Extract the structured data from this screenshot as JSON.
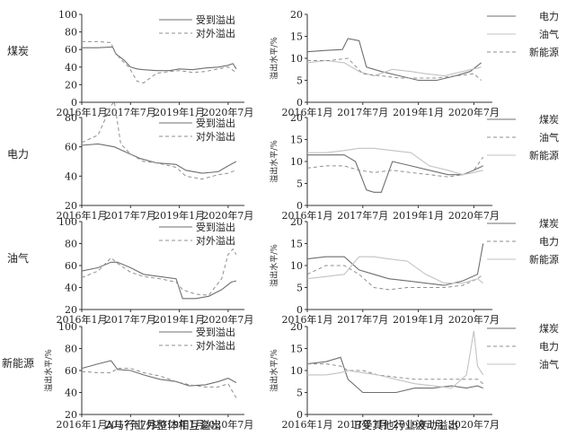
{
  "chart_data": {
    "type": "line",
    "x_ticks": [
      "2016年1月",
      "2017年7月",
      "2019年1月",
      "2020年7月"
    ],
    "x_range": [
      "2016-01",
      "2021-01"
    ],
    "colors": {
      "solid": "#6f6f6f",
      "dashed": "#8f8f8f",
      "light": "#c2c2c2",
      "axis": "#333333"
    },
    "captions": {
      "left": "A与行业外整体相互溢出",
      "right": "B受其他行业波动溢出"
    },
    "rows": [
      {
        "sector": "煤炭",
        "left": {
          "ylabel": "",
          "ylim": [
            0,
            100
          ],
          "yticks": [
            0,
            20,
            40,
            60,
            80,
            100
          ],
          "series": [
            {
              "name": "受到溢出",
              "style": "solid",
              "x": [
                2016.0,
                2016.5,
                2016.95,
                2017.05,
                2017.3,
                2017.5,
                2017.7,
                2017.9,
                2018.3,
                2018.7,
                2019.0,
                2019.4,
                2019.8,
                2020.2,
                2020.5,
                2020.65,
                2020.75
              ],
              "y": [
                62,
                62,
                63,
                55,
                48,
                40,
                38,
                37,
                36,
                36,
                38,
                37,
                39,
                40,
                42,
                44,
                38
              ]
            },
            {
              "name": "对外溢出",
              "style": "dashed",
              "x": [
                2016.0,
                2016.5,
                2016.9,
                2017.0,
                2017.2,
                2017.45,
                2017.7,
                2017.9,
                2018.3,
                2018.7,
                2019.0,
                2019.4,
                2019.8,
                2020.2,
                2020.5,
                2020.75
              ],
              "y": [
                69,
                69,
                68,
                58,
                49,
                40,
                24,
                22,
                33,
                35,
                36,
                34,
                35,
                38,
                40,
                34
              ]
            }
          ]
        },
        "right": {
          "ylabel": "溢出水平/%",
          "ylim": [
            0,
            20
          ],
          "yticks": [
            0,
            5,
            10,
            15,
            20
          ],
          "series": [
            {
              "name": "电力",
              "style": "solid",
              "x": [
                2016.0,
                2016.5,
                2016.95,
                2017.1,
                2017.4,
                2017.6,
                2018.0,
                2018.5,
                2019.0,
                2019.5,
                2020.0,
                2020.4,
                2020.7
              ],
              "y": [
                11.5,
                11.8,
                12,
                14.5,
                14,
                8,
                7,
                6,
                5,
                5,
                6,
                7,
                9
              ]
            },
            {
              "name": "油气",
              "style": "light",
              "x": [
                2016.0,
                2016.5,
                2017.0,
                2017.4,
                2017.8,
                2018.3,
                2018.8,
                2019.2,
                2019.7,
                2020.2,
                2020.7
              ],
              "y": [
                9,
                9.5,
                9,
                7,
                6,
                7.5,
                7,
                6.5,
                6,
                7,
                8
              ]
            },
            {
              "name": "新能源",
              "style": "dashed",
              "x": [
                2016.0,
                2016.6,
                2017.1,
                2017.5,
                2018.0,
                2018.5,
                2019.0,
                2019.5,
                2020.0,
                2020.5,
                2020.7
              ],
              "y": [
                9.5,
                9.5,
                10,
                6.5,
                6,
                5.5,
                5.5,
                5.5,
                6,
                6.5,
                5
              ]
            }
          ]
        }
      },
      {
        "sector": "电力",
        "left": {
          "ylabel": "",
          "ylim": [
            20,
            80
          ],
          "yticks": [
            20,
            40,
            60,
            80
          ],
          "series": [
            {
              "name": "受到溢出",
              "style": "solid",
              "x": [
                2016.0,
                2016.5,
                2017.0,
                2017.4,
                2017.8,
                2018.3,
                2018.9,
                2019.2,
                2019.7,
                2020.2,
                2020.5,
                2020.75
              ],
              "y": [
                61,
                62,
                60,
                56,
                52,
                49,
                48,
                44,
                42,
                43,
                47,
                50
              ]
            },
            {
              "name": "对外溢出",
              "style": "dashed",
              "x": [
                2016.0,
                2016.5,
                2016.9,
                2017.0,
                2017.2,
                2017.5,
                2017.9,
                2018.3,
                2018.9,
                2019.2,
                2019.7,
                2020.2,
                2020.5,
                2020.75
              ],
              "y": [
                63,
                68,
                88,
                91,
                62,
                55,
                50,
                49,
                46,
                40,
                38,
                41,
                42,
                44
              ]
            }
          ]
        },
        "right": {
          "ylabel": "溢出水平/%",
          "ylim": [
            0,
            20
          ],
          "yticks": [
            0,
            5,
            10,
            15,
            20
          ],
          "series": [
            {
              "name": "煤炭",
              "style": "solid",
              "x": [
                2016.0,
                2016.5,
                2017.0,
                2017.3,
                2017.6,
                2017.8,
                2018.0,
                2018.3,
                2018.8,
                2019.3,
                2019.8,
                2020.2,
                2020.5,
                2020.75
              ],
              "y": [
                11.5,
                11.5,
                11.5,
                10,
                3.5,
                3,
                3,
                10,
                9,
                8,
                7,
                7,
                8,
                9
              ]
            },
            {
              "name": "油气",
              "style": "dashed",
              "x": [
                2016.0,
                2016.5,
                2017.0,
                2017.4,
                2017.8,
                2018.3,
                2018.8,
                2019.3,
                2019.8,
                2020.2,
                2020.5,
                2020.75
              ],
              "y": [
                8.5,
                9,
                9,
                8,
                7.5,
                8,
                7.5,
                7,
                6.5,
                7,
                8,
                11
              ]
            },
            {
              "name": "新能源",
              "style": "light",
              "x": [
                2016.0,
                2016.5,
                2017.0,
                2017.4,
                2017.8,
                2018.3,
                2018.8,
                2019.3,
                2019.8,
                2020.2,
                2020.5,
                2020.75
              ],
              "y": [
                12,
                12,
                12.5,
                13,
                13,
                12.5,
                12,
                9,
                8,
                7,
                7.5,
                8
              ]
            }
          ]
        }
      },
      {
        "sector": "油气",
        "left": {
          "ylabel": "",
          "ylim": [
            20,
            100
          ],
          "yticks": [
            20,
            40,
            60,
            80,
            100
          ],
          "series": [
            {
              "name": "受到溢出",
              "style": "solid",
              "x": [
                2016.0,
                2016.5,
                2016.9,
                2017.1,
                2017.5,
                2017.9,
                2018.4,
                2018.9,
                2019.1,
                2019.5,
                2019.9,
                2020.3,
                2020.6,
                2020.75
              ],
              "y": [
                55,
                58,
                63,
                63,
                58,
                52,
                50,
                48,
                30,
                30,
                32,
                38,
                45,
                46
              ]
            },
            {
              "name": "对外溢出",
              "style": "dashed",
              "x": [
                2016.0,
                2016.5,
                2016.9,
                2017.1,
                2017.5,
                2017.9,
                2018.4,
                2018.9,
                2019.1,
                2019.5,
                2019.9,
                2020.3,
                2020.5,
                2020.65,
                2020.75
              ],
              "y": [
                49,
                55,
                67,
                62,
                54,
                50,
                48,
                45,
                38,
                34,
                33,
                48,
                70,
                75,
                70
              ]
            }
          ]
        },
        "right": {
          "ylabel": "溢出水平/%",
          "ylim": [
            0,
            20
          ],
          "yticks": [
            0,
            5,
            10,
            15,
            20
          ],
          "series": [
            {
              "name": "煤炭",
              "style": "solid",
              "x": [
                2016.0,
                2016.5,
                2017.0,
                2017.4,
                2017.8,
                2018.2,
                2018.7,
                2019.2,
                2019.7,
                2020.2,
                2020.6,
                2020.75
              ],
              "y": [
                11.5,
                12,
                12,
                9,
                8,
                7,
                6.5,
                6,
                5.5,
                6.5,
                8,
                15
              ]
            },
            {
              "name": "电力",
              "style": "dashed",
              "x": [
                2016.0,
                2016.5,
                2017.0,
                2017.4,
                2017.8,
                2018.2,
                2018.7,
                2019.2,
                2019.7,
                2020.2,
                2020.6,
                2020.75
              ],
              "y": [
                8,
                10,
                10,
                8,
                5,
                4.5,
                5,
                5,
                5,
                5.5,
                7,
                8
              ]
            },
            {
              "name": "新能源",
              "style": "light",
              "x": [
                2016.0,
                2016.5,
                2017.0,
                2017.4,
                2017.8,
                2018.2,
                2018.7,
                2019.2,
                2019.7,
                2020.2,
                2020.6,
                2020.75
              ],
              "y": [
                7,
                7.5,
                8,
                12,
                12,
                11.5,
                11,
                8,
                6,
                6,
                7,
                6
              ]
            }
          ]
        }
      },
      {
        "sector": "新能源",
        "left": {
          "ylabel": "溢出水平/%",
          "ylim": [
            20,
            100
          ],
          "yticks": [
            20,
            40,
            60,
            80,
            100
          ],
          "series": [
            {
              "name": "受到溢出",
              "style": "solid",
              "x": [
                2016.0,
                2016.5,
                2016.9,
                2017.1,
                2017.5,
                2017.9,
                2018.4,
                2018.9,
                2019.3,
                2019.8,
                2020.2,
                2020.5,
                2020.75
              ],
              "y": [
                62,
                66,
                69,
                61,
                60,
                56,
                52,
                50,
                46,
                47,
                50,
                53,
                49
              ]
            },
            {
              "name": "对外溢出",
              "style": "dashed",
              "x": [
                2016.0,
                2016.5,
                2016.9,
                2017.1,
                2017.5,
                2017.9,
                2018.4,
                2018.9,
                2019.3,
                2019.8,
                2020.2,
                2020.5,
                2020.75
              ],
              "y": [
                59,
                58,
                58,
                62,
                62,
                58,
                55,
                50,
                47,
                45,
                45,
                48,
                35
              ]
            }
          ]
        },
        "right": {
          "ylabel": "溢出水平/%",
          "ylim": [
            0,
            20
          ],
          "yticks": [
            0,
            5,
            10,
            15,
            20
          ],
          "series": [
            {
              "name": "煤炭",
              "style": "solid",
              "x": [
                2016.0,
                2016.5,
                2016.9,
                2017.1,
                2017.5,
                2017.9,
                2018.4,
                2018.9,
                2019.4,
                2019.9,
                2020.3,
                2020.6,
                2020.75
              ],
              "y": [
                11.5,
                12,
                13,
                8,
                5,
                5,
                5,
                6,
                6,
                6.5,
                6,
                6.5,
                6
              ]
            },
            {
              "name": "电力",
              "style": "dashed",
              "x": [
                2016.0,
                2016.5,
                2016.9,
                2017.1,
                2017.5,
                2017.9,
                2018.4,
                2018.9,
                2019.4,
                2019.9,
                2020.3,
                2020.6,
                2020.75
              ],
              "y": [
                11.5,
                11.5,
                11,
                10,
                10,
                9,
                8.5,
                8,
                8,
                8,
                8,
                8,
                7
              ]
            },
            {
              "name": "油气",
              "style": "light",
              "x": [
                2016.0,
                2016.5,
                2016.9,
                2017.1,
                2017.5,
                2017.9,
                2018.4,
                2018.9,
                2019.4,
                2019.9,
                2020.3,
                2020.5,
                2020.6,
                2020.75
              ],
              "y": [
                9,
                9,
                9.5,
                10,
                9.5,
                9,
                8,
                7,
                6.5,
                6,
                9,
                19,
                11,
                9
              ]
            }
          ]
        }
      }
    ]
  }
}
